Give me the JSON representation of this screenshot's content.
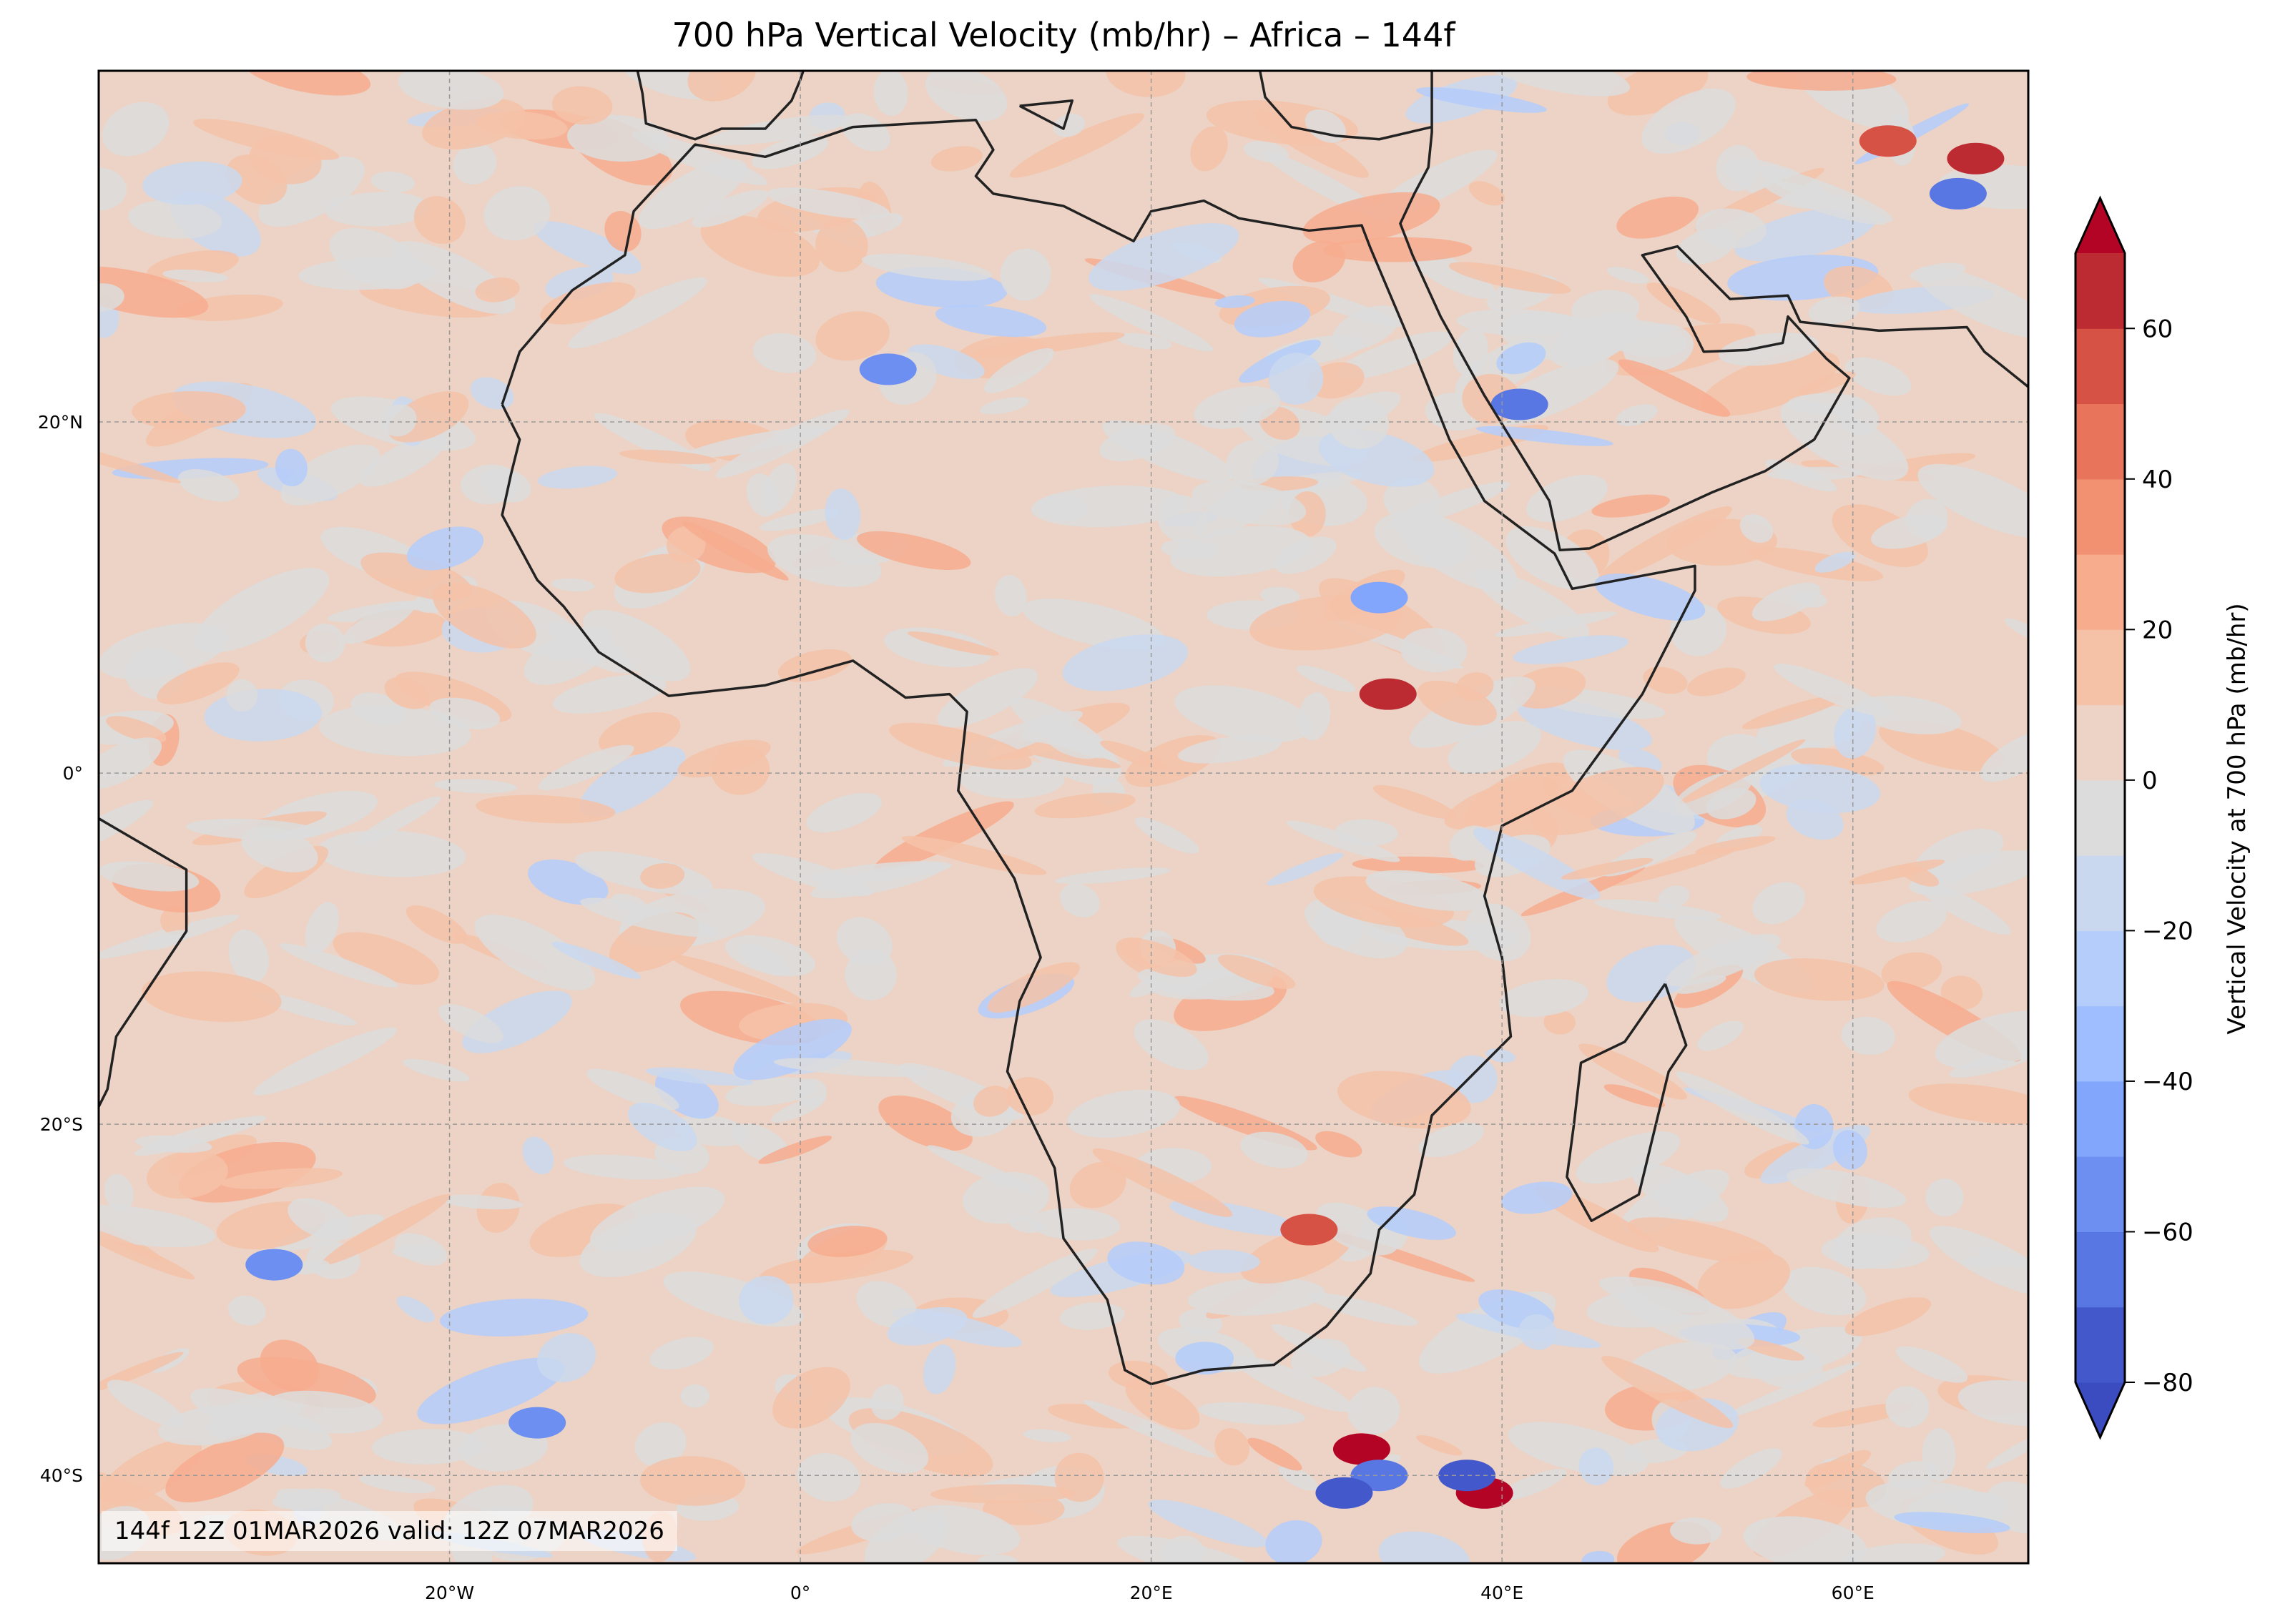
{
  "chart_data": {
    "type": "heatmap",
    "title": "700 hPa Vertical Velocity (mb/hr) – Africa – 144f",
    "extent": {
      "lon": [
        -40,
        70
      ],
      "lat": [
        -45,
        40
      ]
    },
    "x_ticks": [
      {
        "value": -20,
        "label": "20°W"
      },
      {
        "value": 0,
        "label": "0°"
      },
      {
        "value": 20,
        "label": "20°E"
      },
      {
        "value": 40,
        "label": "40°E"
      },
      {
        "value": 60,
        "label": "60°E"
      }
    ],
    "y_ticks": [
      {
        "value": 20,
        "label": "20°N"
      },
      {
        "value": 0,
        "label": "0°"
      },
      {
        "value": -20,
        "label": "20°S"
      },
      {
        "value": -40,
        "label": "40°S"
      }
    ],
    "grid": true,
    "colorbar": {
      "label": "Vertical Velocity at 700 hPa (mb/hr)",
      "levels": [
        -80,
        -70,
        -60,
        -50,
        -40,
        -30,
        -20,
        -10,
        0,
        10,
        20,
        30,
        40,
        50,
        60,
        70
      ],
      "extend": "both",
      "ticks": [
        {
          "value": -80,
          "label": "−80"
        },
        {
          "value": -60,
          "label": "−60"
        },
        {
          "value": -40,
          "label": "−40"
        },
        {
          "value": -20,
          "label": "−20"
        },
        {
          "value": 0,
          "label": "0"
        },
        {
          "value": 20,
          "label": "20"
        },
        {
          "value": 40,
          "label": "40"
        },
        {
          "value": 60,
          "label": "60"
        }
      ],
      "colors": [
        "#3b4cc0",
        "#4358cb",
        "#5977e3",
        "#6c8ff1",
        "#82a6fb",
        "#9ebeff",
        "#b4cdfa",
        "#cad8ef",
        "#dcdcdc",
        "#ecd3c5",
        "#f5c2a8",
        "#f7ac8e",
        "#f29072",
        "#e7745b",
        "#d65244",
        "#bc2a32",
        "#b40426"
      ],
      "location": "right"
    },
    "annotation": "144f 12Z 01MAR2026 valid: 12Z 07MAR2026"
  }
}
